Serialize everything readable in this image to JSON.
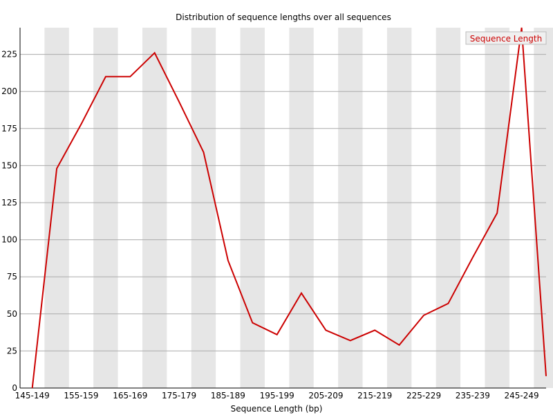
{
  "chart_data": {
    "type": "line",
    "title": "Distribution of sequence lengths over all sequences",
    "xlabel": "Sequence Length (bp)",
    "ylabel": "",
    "categories": [
      "145-149",
      "150-154",
      "155-159",
      "160-164",
      "165-169",
      "170-174",
      "175-179",
      "180-184",
      "185-189",
      "190-194",
      "195-199",
      "200-204",
      "205-209",
      "210-214",
      "215-219",
      "220-224",
      "225-229",
      "230-234",
      "235-239",
      "240-244",
      "245-249",
      "250-254"
    ],
    "tick_labels": [
      "145-149",
      "155-159",
      "165-169",
      "175-179",
      "185-189",
      "195-199",
      "205-209",
      "215-219",
      "225-229",
      "235-239",
      "245-249"
    ],
    "series": [
      {
        "name": "Sequence Length",
        "color": "#cc0000",
        "values": [
          0,
          148,
          178,
          210,
          210,
          226,
          193,
          159,
          86,
          44,
          36,
          64,
          39,
          32,
          39,
          29,
          49,
          57,
          88,
          118,
          243,
          8
        ]
      }
    ],
    "ylim": [
      0,
      243
    ],
    "yticks": [
      0,
      25,
      50,
      75,
      100,
      125,
      150,
      175,
      200,
      225
    ],
    "grid": true,
    "legend": "top-right",
    "colors": {
      "line": "#cc0000",
      "band": "#e6e6e6",
      "gridline": "#aaaaaa",
      "axis": "#000000"
    }
  }
}
